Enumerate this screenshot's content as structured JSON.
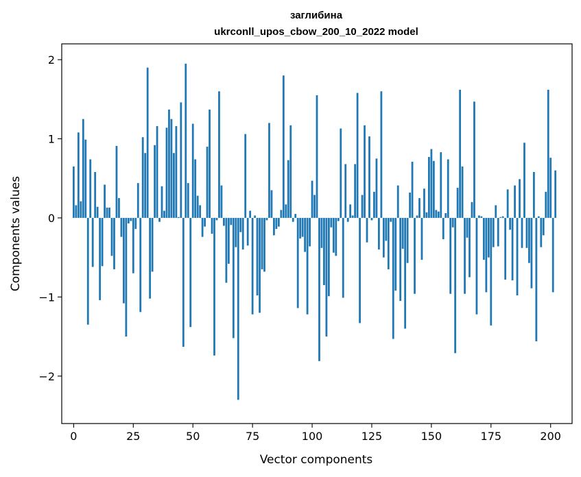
{
  "chart_data": {
    "type": "bar",
    "title": "заглибина",
    "subtitle": "ukrconll_upos_cbow_200_10_2022 model",
    "xlabel": "Vector components",
    "ylabel": "Components values",
    "xlim": [
      -5,
      209
    ],
    "ylim": [
      -2.6,
      2.2
    ],
    "xticks": [
      0,
      25,
      50,
      75,
      100,
      125,
      150,
      175,
      200
    ],
    "yticks": [
      -2,
      -1,
      0,
      1,
      2
    ],
    "xtick_labels": [
      "0",
      "25",
      "50",
      "75",
      "100",
      "125",
      "150",
      "175",
      "200"
    ],
    "ytick_labels": [
      "−2",
      "−1",
      "0",
      "1",
      "2"
    ],
    "bar_color": "#1f77b4",
    "grid": false,
    "values": [
      0.65,
      0.16,
      1.08,
      0.21,
      1.25,
      0.99,
      -1.35,
      0.74,
      -0.62,
      0.58,
      0.14,
      -1.04,
      -0.61,
      0.42,
      0.13,
      0.13,
      -0.48,
      -0.65,
      0.91,
      0.25,
      -0.24,
      -1.08,
      -1.5,
      -0.07,
      -0.04,
      -0.7,
      -0.14,
      0.44,
      -1.19,
      1.02,
      0.82,
      1.9,
      -1.02,
      -0.68,
      0.92,
      1.16,
      -0.05,
      0.4,
      0.09,
      1.14,
      1.37,
      1.25,
      0.82,
      1.16,
      0.01,
      1.46,
      -1.63,
      1.95,
      0.44,
      -1.38,
      1.19,
      0.74,
      0.28,
      0.16,
      -0.24,
      -0.11,
      0.9,
      1.37,
      -0.2,
      -1.74,
      -0.03,
      1.6,
      0.41,
      -0.1,
      -0.82,
      -0.58,
      -0.09,
      -1.52,
      -0.37,
      -2.3,
      -0.18,
      -0.4,
      1.06,
      -0.35,
      0.09,
      -1.22,
      0.03,
      -0.98,
      -1.2,
      -0.65,
      -0.68,
      -0.03,
      1.2,
      0.35,
      -0.22,
      -0.14,
      -0.11,
      0.1,
      1.8,
      0.17,
      0.73,
      1.17,
      -0.05,
      0.05,
      -1.14,
      -0.26,
      -0.24,
      -0.43,
      -1.22,
      -0.36,
      0.47,
      0.29,
      1.55,
      -1.81,
      -0.38,
      -0.85,
      -1.5,
      -0.99,
      -0.12,
      -0.44,
      -0.48,
      -0.04,
      1.13,
      -1.01,
      0.68,
      -0.05,
      0.17,
      0.03,
      0.68,
      1.58,
      -1.33,
      0.29,
      1.17,
      -0.31,
      1.03,
      -0.03,
      0.33,
      0.75,
      -0.4,
      1.6,
      -0.5,
      -0.29,
      -0.65,
      -0.05,
      -1.53,
      -0.92,
      0.41,
      -1.05,
      -0.39,
      -1.4,
      -0.57,
      0.32,
      0.71,
      -0.96,
      0.03,
      0.25,
      -0.53,
      0.37,
      0.07,
      0.77,
      0.87,
      0.72,
      0.1,
      0.08,
      0.83,
      -0.27,
      0.06,
      0.74,
      -0.96,
      -0.12,
      -1.71,
      0.38,
      1.62,
      0.65,
      -0.96,
      -0.25,
      -0.75,
      0.2,
      1.47,
      -1.22,
      0.03,
      0.02,
      -0.53,
      -0.94,
      -0.5,
      -1.36,
      -0.37,
      0.16,
      -0.36,
      0.01,
      0.02,
      -0.78,
      0.36,
      -0.15,
      -0.79,
      0.41,
      -0.98,
      0.49,
      -0.38,
      0.95,
      -0.38,
      -0.57,
      -0.89,
      0.58,
      -1.56,
      0.02,
      -0.37,
      -0.22,
      0.33,
      1.62,
      0.76,
      -0.94,
      0.6
    ]
  }
}
